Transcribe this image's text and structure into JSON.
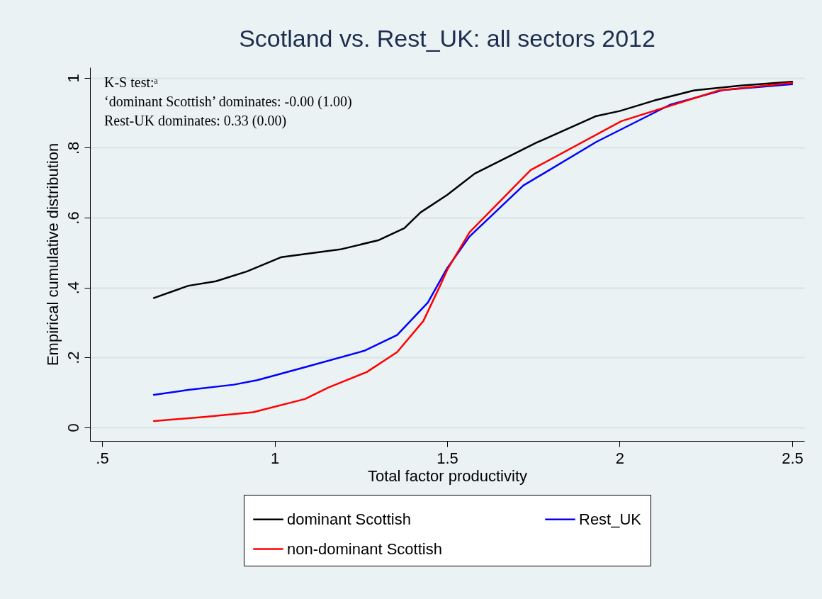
{
  "chart_data": {
    "type": "line",
    "title": "Scotland vs. Rest_UK: all sectors 2012",
    "xlabel": "Total factor productivity",
    "ylabel": "Empirical cumulative distribution",
    "annotations": [
      "K-S test:ᵃ",
      "‘dominant Scottish’ dominates: -0.00 (1.00)",
      "Rest-UK dominates: 0.33 (0.00)"
    ],
    "series": [
      {
        "name": "dominant Scottish",
        "color": "#000000",
        "x": [
          0.65,
          0.75,
          0.83,
          0.92,
          1.02,
          1.19,
          1.3,
          1.376,
          1.423,
          1.5,
          1.58,
          1.756,
          1.93,
          2.0,
          2.1,
          2.216,
          2.35,
          2.5
        ],
        "values": [
          0.37,
          0.405,
          0.418,
          0.446,
          0.487,
          0.509,
          0.535,
          0.57,
          0.615,
          0.665,
          0.726,
          0.813,
          0.89,
          0.905,
          0.935,
          0.964,
          0.978,
          0.989
        ]
      },
      {
        "name": "Rest_UK",
        "color": "#0000ff",
        "x": [
          0.65,
          0.75,
          0.882,
          0.95,
          1.088,
          1.26,
          1.355,
          1.444,
          1.5,
          1.565,
          1.721,
          1.933,
          2.146,
          2.3,
          2.5
        ],
        "values": [
          0.093,
          0.107,
          0.122,
          0.135,
          0.172,
          0.219,
          0.264,
          0.357,
          0.455,
          0.546,
          0.692,
          0.817,
          0.923,
          0.965,
          0.982
        ]
      },
      {
        "name": "non-dominant Scottish",
        "color": "#ff0000",
        "x": [
          0.65,
          0.8,
          0.938,
          1.088,
          1.156,
          1.267,
          1.355,
          1.431,
          1.48,
          1.5,
          1.565,
          1.742,
          2.005,
          2.288,
          2.5
        ],
        "values": [
          0.018,
          0.03,
          0.043,
          0.081,
          0.114,
          0.158,
          0.215,
          0.304,
          0.406,
          0.45,
          0.558,
          0.736,
          0.876,
          0.964,
          0.986
        ]
      }
    ],
    "xlim": [
      0.465,
      2.535
    ],
    "xticks": [
      {
        "value": 0.5,
        "label": ".5"
      },
      1,
      1.5,
      2,
      2.5
    ],
    "ylim": [
      -0.039,
      1.03
    ],
    "yticks": [
      0,
      {
        "value": 0.2,
        "label": ".2"
      },
      {
        "value": 0.4,
        "label": ".4"
      },
      {
        "value": 0.6,
        "label": ".6"
      },
      {
        "value": 0.8,
        "label": ".8"
      },
      1
    ],
    "grid": "y",
    "legend": "bottom",
    "marker": "none",
    "line_style": "solid"
  }
}
